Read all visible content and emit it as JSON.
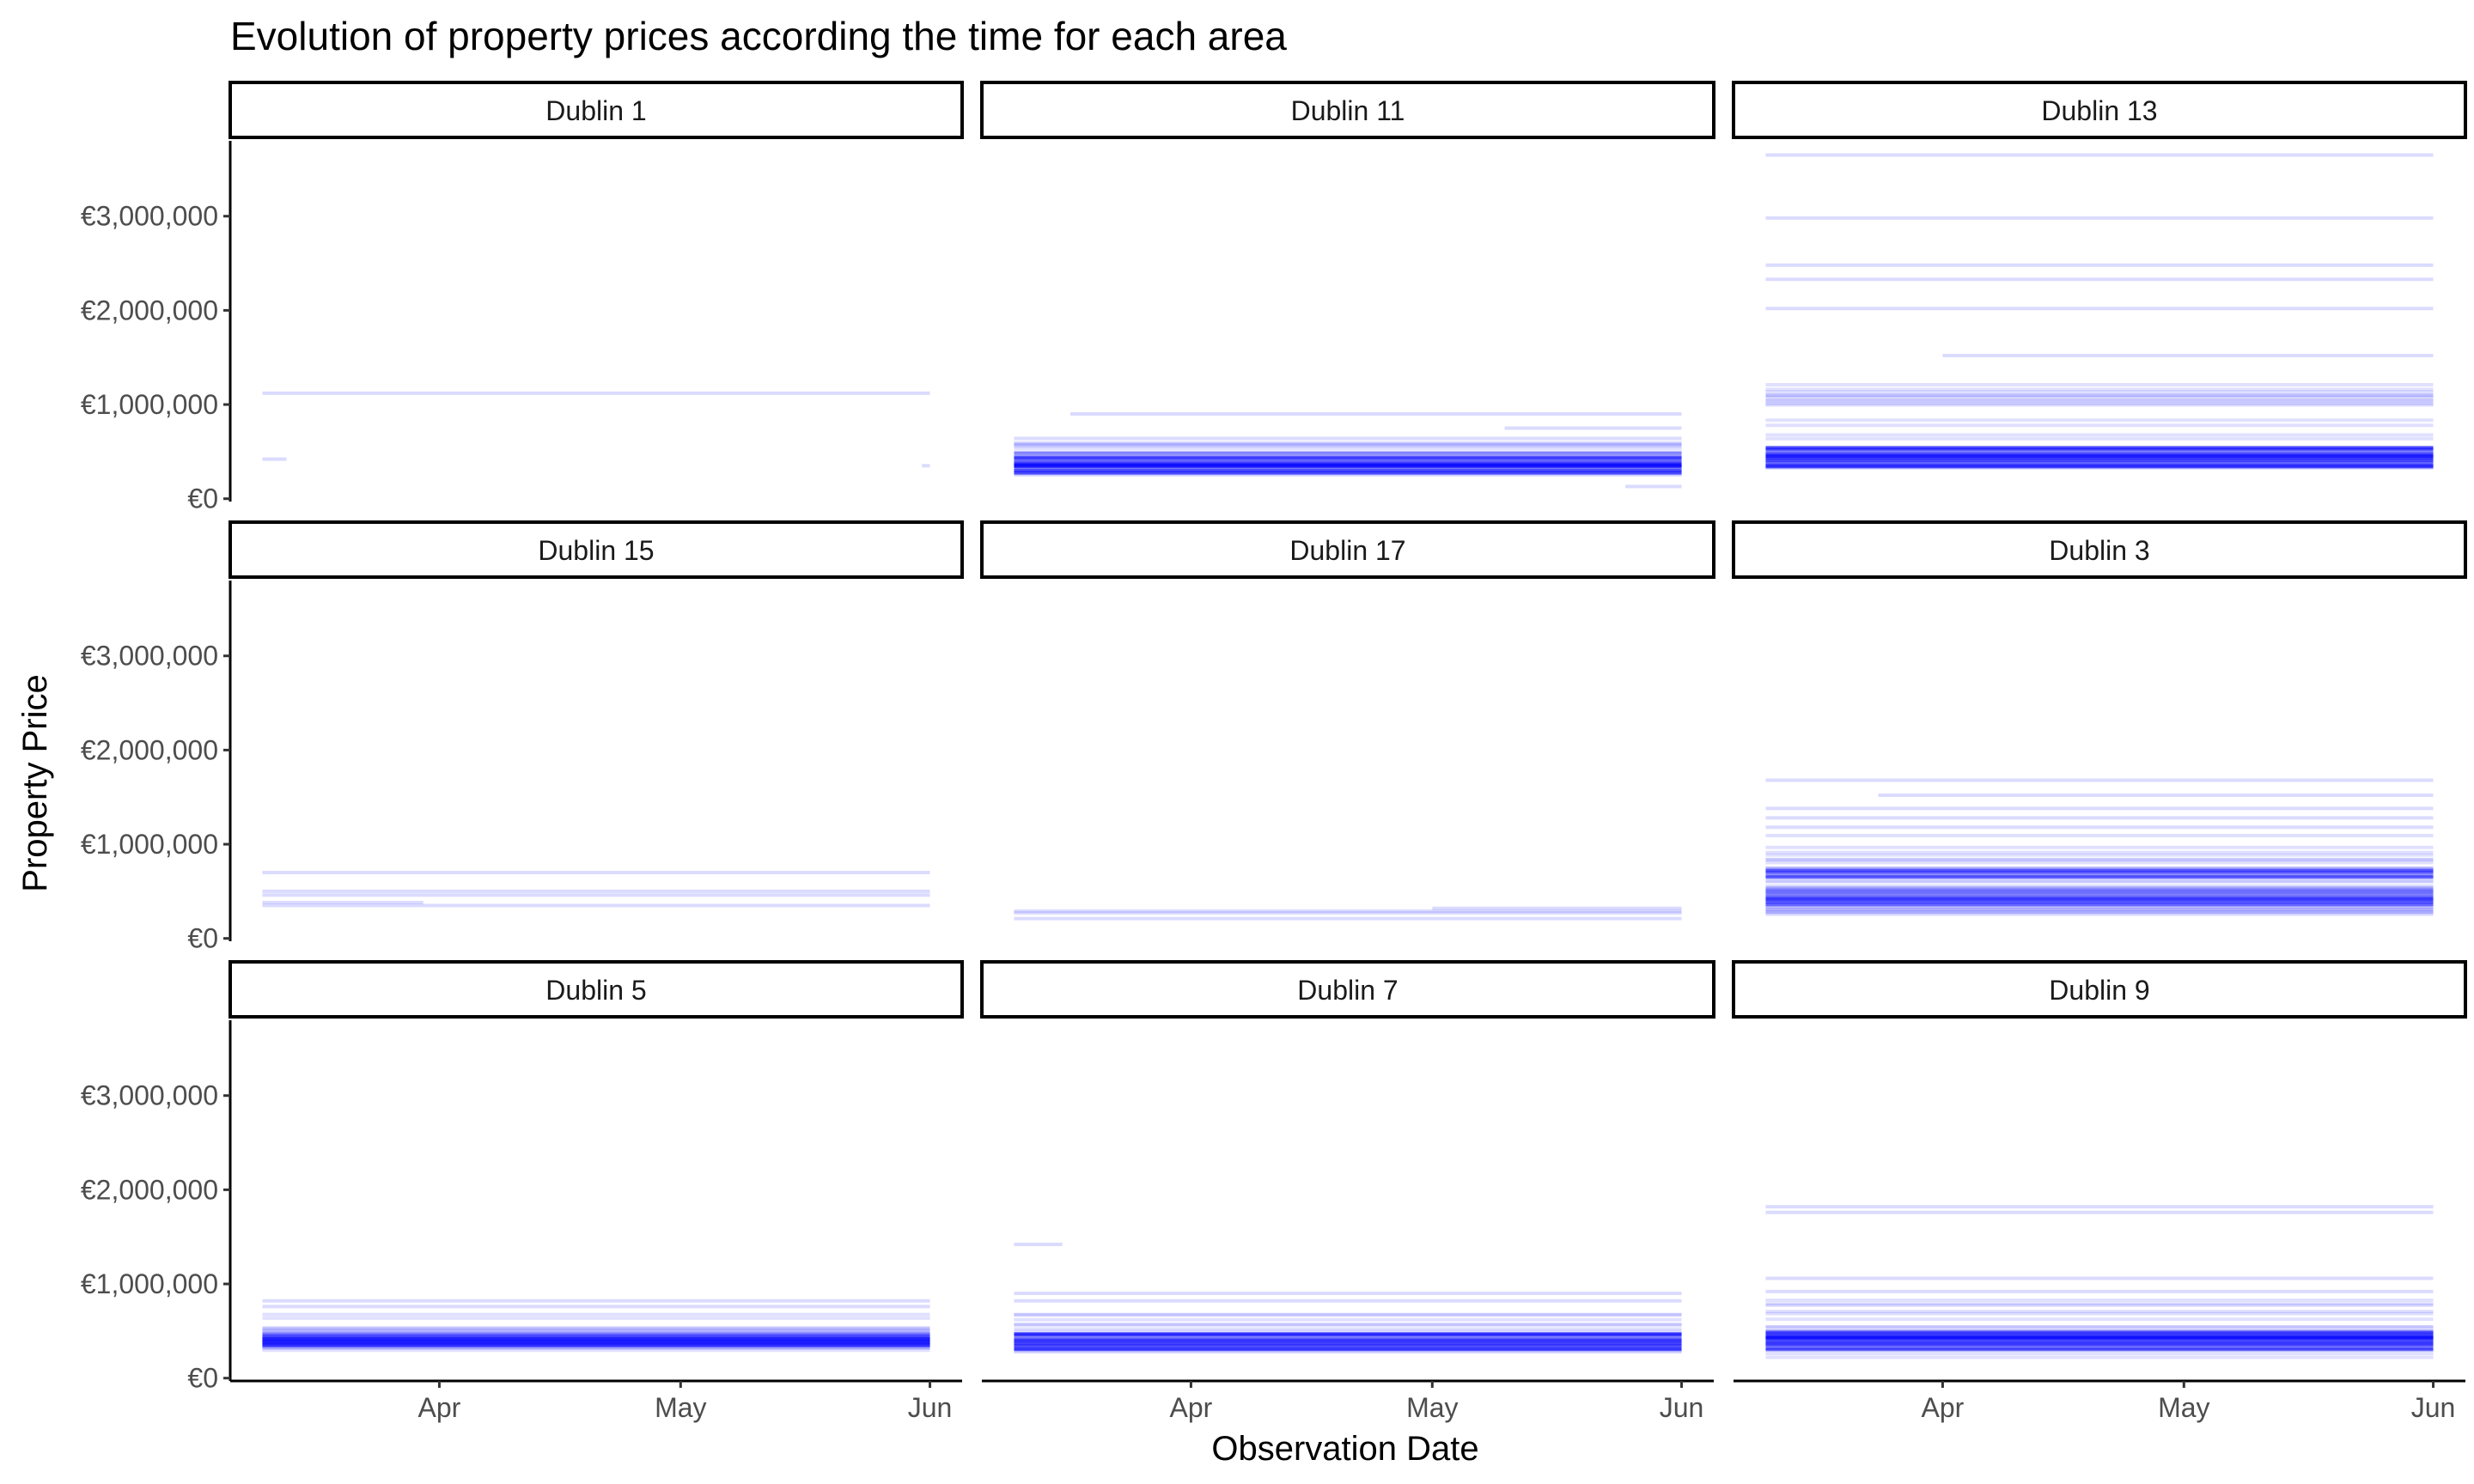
{
  "chart_data": {
    "type": "line",
    "title": "Evolution of property prices according the time for each area",
    "xlabel": "Observation Date",
    "ylabel": "Property Price",
    "x_tick_labels": [
      "Apr",
      "May",
      "Jun"
    ],
    "x_tick_dates": [
      "2022-04-01",
      "2022-05-01",
      "2022-06-01"
    ],
    "xlim": [
      "2022-03-06",
      "2022-06-05"
    ],
    "y_tick_labels": [
      "€0",
      "€1,000,000",
      "€2,000,000",
      "€3,000,000"
    ],
    "y_tick_values": [
      0,
      1000000,
      2000000,
      3000000
    ],
    "ylim": [
      -30000,
      3800000
    ],
    "line_color": "#0000FF",
    "grid": false,
    "legend": "none",
    "facet_layout": "3x3",
    "facets": [
      {
        "label": "Dublin 1",
        "series": [
          {
            "start": "2022-03-10",
            "end": "2022-06-01",
            "value": 1120000
          },
          {
            "start": "2022-03-10",
            "end": "2022-03-13",
            "value": 420000
          },
          {
            "start": "2022-05-31",
            "end": "2022-06-01",
            "value": 350000
          }
        ]
      },
      {
        "label": "Dublin 11",
        "band": {
          "start": "2022-03-10",
          "end": "2022-06-01",
          "low": 200000,
          "high": 600000,
          "core_low": 260000,
          "core_high": 460000,
          "count": 30
        },
        "series": [
          {
            "start": "2022-03-17",
            "end": "2022-06-01",
            "value": 900000
          },
          {
            "start": "2022-05-10",
            "end": "2022-06-01",
            "value": 750000
          },
          {
            "start": "2022-03-10",
            "end": "2022-06-01",
            "value": 640000
          },
          {
            "start": "2022-05-25",
            "end": "2022-06-01",
            "value": 130000
          }
        ]
      },
      {
        "label": "Dublin 13",
        "band": {
          "start": "2022-03-10",
          "end": "2022-06-01",
          "low": 300000,
          "high": 1250000,
          "core_low": 320000,
          "core_high": 550000,
          "count": 34
        },
        "series": [
          {
            "start": "2022-03-10",
            "end": "2022-06-01",
            "value": 3650000
          },
          {
            "start": "2022-03-10",
            "end": "2022-06-01",
            "value": 2980000
          },
          {
            "start": "2022-03-10",
            "end": "2022-06-01",
            "value": 2480000
          },
          {
            "start": "2022-03-10",
            "end": "2022-06-01",
            "value": 2330000
          },
          {
            "start": "2022-03-10",
            "end": "2022-06-01",
            "value": 2020000
          },
          {
            "start": "2022-04-01",
            "end": "2022-06-01",
            "value": 1520000
          },
          {
            "start": "2022-03-10",
            "end": "2022-06-01",
            "value": 1100000
          }
        ]
      },
      {
        "label": "Dublin 15",
        "series": [
          {
            "start": "2022-03-10",
            "end": "2022-06-01",
            "value": 700000
          },
          {
            "start": "2022-03-10",
            "end": "2022-06-01",
            "value": 500000
          },
          {
            "start": "2022-03-10",
            "end": "2022-06-01",
            "value": 460000
          },
          {
            "start": "2022-03-10",
            "end": "2022-03-30",
            "value": 380000
          },
          {
            "start": "2022-03-10",
            "end": "2022-06-01",
            "value": 350000
          }
        ]
      },
      {
        "label": "Dublin 17",
        "series": [
          {
            "start": "2022-03-10",
            "end": "2022-06-01",
            "value": 290000
          },
          {
            "start": "2022-03-10",
            "end": "2022-06-01",
            "value": 270000
          },
          {
            "start": "2022-03-10",
            "end": "2022-06-01",
            "value": 210000
          },
          {
            "start": "2022-05-01",
            "end": "2022-06-01",
            "value": 320000
          }
        ]
      },
      {
        "label": "Dublin 3",
        "band": {
          "start": "2022-03-10",
          "end": "2022-06-01",
          "low": 220000,
          "high": 1100000,
          "core_low": 280000,
          "core_high": 750000,
          "count": 34
        },
        "series": [
          {
            "start": "2022-03-10",
            "end": "2022-06-01",
            "value": 1680000
          },
          {
            "start": "2022-03-24",
            "end": "2022-06-01",
            "value": 1520000
          },
          {
            "start": "2022-03-10",
            "end": "2022-06-01",
            "value": 1380000
          },
          {
            "start": "2022-03-10",
            "end": "2022-06-01",
            "value": 1280000
          },
          {
            "start": "2022-03-10",
            "end": "2022-06-01",
            "value": 1180000
          }
        ]
      },
      {
        "label": "Dublin 5",
        "band": {
          "start": "2022-03-10",
          "end": "2022-06-01",
          "low": 280000,
          "high": 700000,
          "core_low": 320000,
          "core_high": 470000,
          "count": 26
        },
        "series": [
          {
            "start": "2022-03-10",
            "end": "2022-06-01",
            "value": 820000
          },
          {
            "start": "2022-03-10",
            "end": "2022-06-01",
            "value": 760000
          }
        ]
      },
      {
        "label": "Dublin 7",
        "band": {
          "start": "2022-03-10",
          "end": "2022-06-01",
          "low": 250000,
          "high": 700000,
          "core_low": 300000,
          "core_high": 470000,
          "count": 26
        },
        "series": [
          {
            "start": "2022-03-10",
            "end": "2022-03-16",
            "value": 1420000
          },
          {
            "start": "2022-03-10",
            "end": "2022-06-01",
            "value": 900000
          },
          {
            "start": "2022-03-10",
            "end": "2022-06-01",
            "value": 820000
          }
        ]
      },
      {
        "label": "Dublin 9",
        "band": {
          "start": "2022-03-10",
          "end": "2022-06-01",
          "low": 200000,
          "high": 850000,
          "core_low": 300000,
          "core_high": 500000,
          "count": 32
        },
        "series": [
          {
            "start": "2022-03-10",
            "end": "2022-06-01",
            "value": 1820000
          },
          {
            "start": "2022-03-10",
            "end": "2022-06-01",
            "value": 1760000
          },
          {
            "start": "2022-03-10",
            "end": "2022-06-01",
            "value": 1060000
          },
          {
            "start": "2022-03-10",
            "end": "2022-06-01",
            "value": 920000
          }
        ]
      }
    ]
  }
}
